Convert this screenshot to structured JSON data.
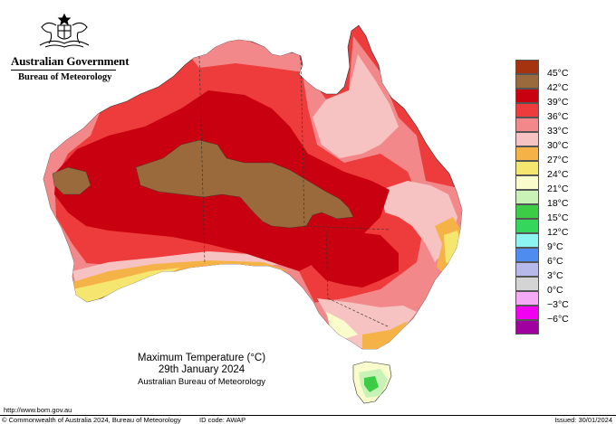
{
  "header": {
    "government": "Australian Government",
    "bureau": "Bureau of Meteorology"
  },
  "title": {
    "line1": "Maximum Temperature (°C)",
    "line2": "29th January 2024",
    "line3": "Australian Bureau of Meteorology"
  },
  "legend": [
    {
      "label": "45°C",
      "color": "#a5330f"
    },
    {
      "label": "42°C",
      "color": "#9a6a3c"
    },
    {
      "label": "39°C",
      "color": "#c8000f"
    },
    {
      "label": "36°C",
      "color": "#ee3b3b"
    },
    {
      "label": "33°C",
      "color": "#f2888a"
    },
    {
      "label": "30°C",
      "color": "#f7c2c2"
    },
    {
      "label": "27°C",
      "color": "#f5b347"
    },
    {
      "label": "24°C",
      "color": "#f4e66e"
    },
    {
      "label": "21°C",
      "color": "#fafccc"
    },
    {
      "label": "18°C",
      "color": "#c9f2b6"
    },
    {
      "label": "15°C",
      "color": "#3dcc45"
    },
    {
      "label": "12°C",
      "color": "#35d65c"
    },
    {
      "label": "9°C",
      "color": "#8cf5f2"
    },
    {
      "label": "6°C",
      "color": "#4e8cf0"
    },
    {
      "label": "3°C",
      "color": "#b7b9ea"
    },
    {
      "label": "0°C",
      "color": "#d4d4d4"
    },
    {
      "label": "−3°C",
      "color": "#f4aaf4"
    },
    {
      "label": "−6°C",
      "color": "#f200f2"
    },
    {
      "label": "",
      "color": "#a000a0"
    }
  ],
  "footer": {
    "url": "http://www.bom.gov.au",
    "copyright": "© Commonwealth of Australia 2024, Bureau of Meteorology",
    "id_code": "ID code: AWAP",
    "issued": "Issued: 30/01/2024"
  }
}
